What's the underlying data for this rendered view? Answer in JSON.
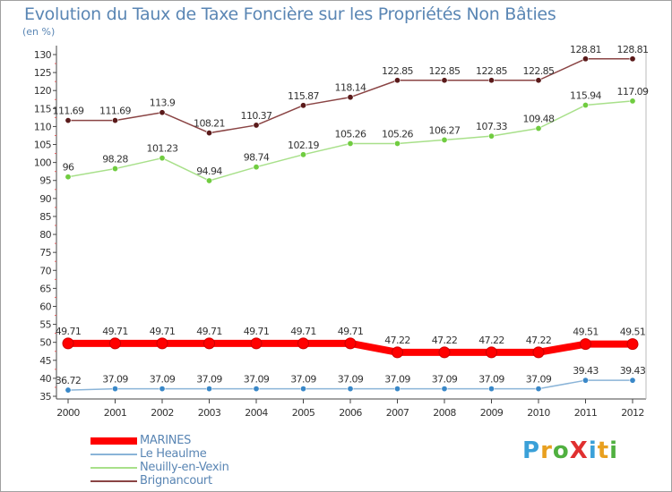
{
  "title": "Evolution du Taux de Taxe Foncière sur les Propriétés Non Bâties",
  "unit_label": "(en %)",
  "logo": {
    "text": "ProXiti",
    "letters": [
      {
        "char": "P",
        "color": "#3aa0d8"
      },
      {
        "char": "r",
        "color": "#e8a020"
      },
      {
        "char": "o",
        "color": "#50b040"
      },
      {
        "char": "X",
        "color": "#e03030"
      },
      {
        "char": "i",
        "color": "#3aa0d8"
      },
      {
        "char": "t",
        "color": "#e8a020"
      },
      {
        "char": "i",
        "color": "#50b040"
      }
    ]
  },
  "chart_data": {
    "type": "line",
    "title": "Evolution du Taux de Taxe Foncière sur les Propriétés Non Bâties",
    "ylabel": "(en %)",
    "xlabel": "",
    "x": [
      "2000",
      "2001",
      "2002",
      "2003",
      "2004",
      "2005",
      "2006",
      "2007",
      "2008",
      "2009",
      "2010",
      "2011",
      "2012"
    ],
    "ylim": [
      35,
      130
    ],
    "ytick_step": 5,
    "grid": false,
    "legend_position": "bottom-left",
    "series": [
      {
        "name": "MARINES",
        "color": "#ff0000",
        "marker_color": "#ff0000",
        "emphasis": true,
        "values": [
          49.71,
          49.71,
          49.71,
          49.71,
          49.71,
          49.71,
          49.71,
          47.22,
          47.22,
          47.22,
          47.22,
          49.51,
          49.51
        ],
        "labels": [
          "49.71",
          "49.71",
          "49.71",
          "49.71",
          "49.71",
          "49.71",
          "49.71",
          "47.22",
          "47.22",
          "47.22",
          "47.22",
          "49.51",
          "49.51"
        ]
      },
      {
        "name": "Le Heaulme",
        "color": "#8ab4d8",
        "marker_color": "#3a88c8",
        "emphasis": false,
        "values": [
          36.72,
          37.09,
          37.09,
          37.09,
          37.09,
          37.09,
          37.09,
          37.09,
          37.09,
          37.09,
          37.09,
          39.43,
          39.43
        ],
        "labels": [
          "36.72",
          "37.09",
          "37.09",
          "37.09",
          "37.09",
          "37.09",
          "37.09",
          "37.09",
          "37.09",
          "37.09",
          "37.09",
          "39.43",
          "39.43"
        ]
      },
      {
        "name": "Neuilly-en-Vexin",
        "color": "#a8e08a",
        "marker_color": "#70cc40",
        "emphasis": false,
        "values": [
          96,
          98.28,
          101.23,
          94.94,
          98.74,
          102.19,
          105.26,
          105.26,
          106.27,
          107.33,
          109.48,
          115.94,
          117.09
        ],
        "labels": [
          "96",
          "98.28",
          "101.23",
          "94.94",
          "98.74",
          "102.19",
          "105.26",
          "105.26",
          "106.27",
          "107.33",
          "109.48",
          "115.94",
          "117.09"
        ]
      },
      {
        "name": "Brignancourt",
        "color": "#8a4444",
        "marker_color": "#5a1a1a",
        "emphasis": false,
        "values": [
          111.69,
          111.69,
          113.9,
          108.21,
          110.37,
          115.87,
          118.14,
          122.85,
          122.85,
          122.85,
          122.85,
          128.81,
          128.81
        ],
        "labels": [
          "111.69",
          "111.69",
          "113.9",
          "108.21",
          "110.37",
          "115.87",
          "118.14",
          "122.85",
          "122.85",
          "122.85",
          "122.85",
          "128.81",
          "128.81"
        ]
      }
    ]
  }
}
